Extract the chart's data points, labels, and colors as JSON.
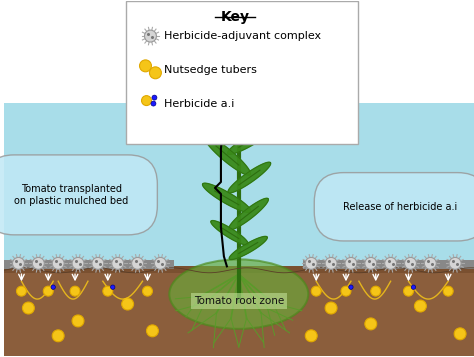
{
  "fig_width": 4.74,
  "fig_height": 3.57,
  "dpi": 100,
  "bg_color": "#ffffff",
  "sky_color": "#a8dde9",
  "soil_color": "#8B5E3C",
  "root_zone_color": "#6aab3a",
  "leaf_color": "#3a8a1a",
  "stem_color": "#2d6e10",
  "key_title": "Key",
  "key_items": [
    "Herbicide-adjuvant complex",
    "Nutsedge tubers",
    "Herbicide a.i"
  ],
  "label_tomato": "Tomato transplanted\non plastic mulched bed",
  "label_release": "Release of herbicide a.i",
  "label_rootzone": "Tomato root zone",
  "tuber_color": "#f5c518",
  "tuber_edge": "#e0a800",
  "herbicide_color": "#1a1aff",
  "herbicide_edge": "#00008b",
  "adjuvant_color": "#d5d5d5",
  "adjuvant_edge": "#999999",
  "adjuvant_spike": "#aaaaaa",
  "text_color": "#000000",
  "font_size_key": 8,
  "font_size_label": 7
}
